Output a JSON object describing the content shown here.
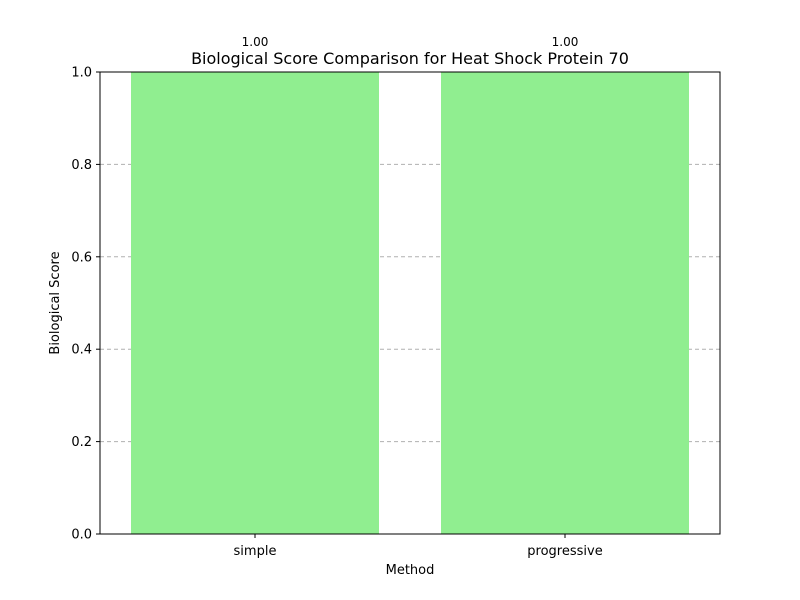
{
  "chart_data": {
    "type": "bar",
    "title": "Biological Score Comparison for Heat Shock Protein 70",
    "xlabel": "Method",
    "ylabel": "Biological Score",
    "categories": [
      "simple",
      "progressive"
    ],
    "values": [
      1.0,
      1.0
    ],
    "data_labels": [
      "1.00",
      "1.00"
    ],
    "ylim": [
      0,
      1.0
    ],
    "yticks": [
      0.0,
      0.2,
      0.4,
      0.6,
      0.8,
      1.0
    ],
    "ytick_labels": [
      "0.0",
      "0.2",
      "0.4",
      "0.6",
      "0.8",
      "1.0"
    ],
    "grid": "y dashed",
    "bar_color": "#90ee90"
  }
}
